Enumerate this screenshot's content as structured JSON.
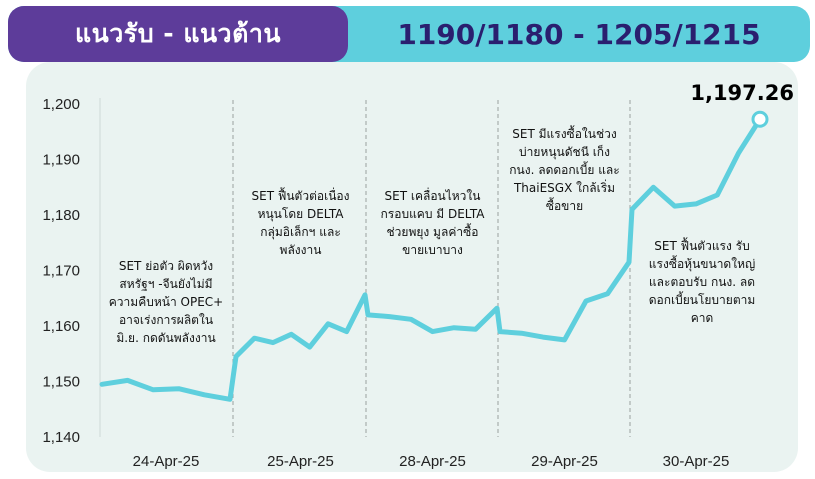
{
  "header": {
    "left_title": "แนวรับ - แนวต้าน",
    "right_title": "1190/1180 - 1205/1215",
    "colors": {
      "left_bg": "#5d3c9a",
      "right_bg": "#5ecfdd",
      "right_text": "#2a1f6f"
    }
  },
  "chart_data": {
    "type": "line",
    "title": "",
    "xlabel": "",
    "ylabel": "",
    "ylim": [
      1140,
      1200
    ],
    "yticks": [
      "1,140",
      "1,150",
      "1,160",
      "1,170",
      "1,180",
      "1,190",
      "1,200"
    ],
    "line_color": "#5ecfdd",
    "grid": "vertical dashed day separators",
    "days": [
      {
        "label": "24-Apr-25",
        "values": [
          1149.5,
          1150.2,
          1148.5,
          1148.7,
          1147.6,
          1146.8
        ],
        "annotation": [
          "SET ย่อตัว ผิดหวัง",
          "สหรัฐฯ -จีนยังไม่มี",
          "ความคืบหน้า OPEC+",
          "อาจเร่งการผลิตใน",
          "มิ.ย. กดดันพลังงาน"
        ]
      },
      {
        "label": "25-Apr-25",
        "values": [
          1154.5,
          1157.8,
          1157.0,
          1158.5,
          1156.2,
          1160.4,
          1159.0,
          1165.6
        ],
        "annotation": [
          "SET ฟื้นตัวต่อเนื่อง",
          "หนุนโดย DELTA",
          "กลุ่มอิเล็กฯ และ",
          "พลังงาน"
        ]
      },
      {
        "label": "28-Apr-25",
        "values": [
          1162.0,
          1161.7,
          1161.2,
          1159.0,
          1159.7,
          1159.4,
          1163.2
        ],
        "annotation": [
          "SET เคลื่อนไหวใน",
          "กรอบแคบ มี DELTA",
          "ช่วยพยุง มูลค่าซื้อ",
          "ขายเบาบาง"
        ]
      },
      {
        "label": "29-Apr-25",
        "values": [
          1159.0,
          1158.7,
          1158.0,
          1157.5,
          1164.5,
          1165.8,
          1171.5
        ],
        "annotation": [
          "SET มีแรงซื้อในช่วง",
          "บ่ายหนุนดัชนี เก็ง",
          "กนง. ลดดอกเบี้ย และ",
          "ThaiESGX ใกล้เริ่ม",
          "ซื้อขาย"
        ]
      },
      {
        "label": "30-Apr-25",
        "values": [
          1181.0,
          1185.0,
          1181.6,
          1182.0,
          1183.6,
          1191.2,
          1197.26
        ],
        "annotation": [
          "SET ฟื้นตัวแรง รับ",
          "แรงซื้อหุ้นขนาดใหญ่",
          "และตอบรับ กนง. ลด",
          "ดอกเบี้ยนโยบายตาม",
          "คาด"
        ]
      }
    ],
    "last_value_label": "1,197.26"
  }
}
